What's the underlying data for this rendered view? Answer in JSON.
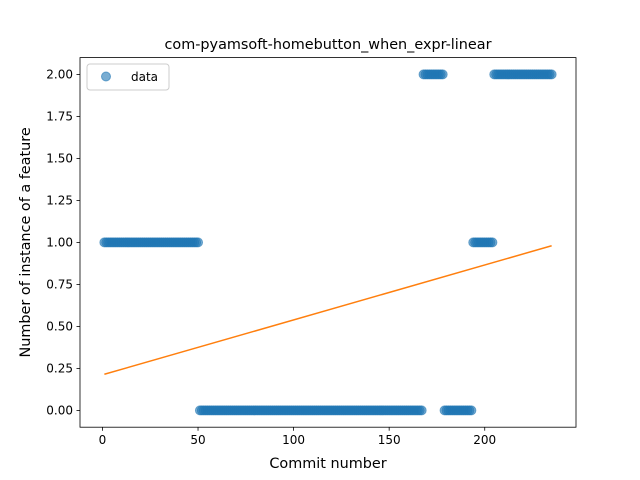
{
  "chart_data": {
    "type": "scatter",
    "title": "com-pyamsoft-homebutton_when_expr-linear",
    "xlabel": "Commit number",
    "ylabel": "Number of instance of a feature",
    "xlim": [
      -11.75,
      247.75
    ],
    "ylim": [
      -0.1,
      2.1
    ],
    "x_ticks": [
      0,
      50,
      100,
      150,
      200
    ],
    "y_ticks": [
      0.0,
      0.25,
      0.5,
      0.75,
      1.0,
      1.25,
      1.5,
      1.75,
      2.0
    ],
    "x_tick_labels": [
      "0",
      "50",
      "100",
      "150",
      "200"
    ],
    "y_tick_labels": [
      "0.00",
      "0.25",
      "0.50",
      "0.75",
      "1.00",
      "1.25",
      "1.50",
      "1.75",
      "2.00"
    ],
    "grid": false,
    "legend_position": "top-left",
    "series": [
      {
        "name": "data",
        "kind": "points",
        "color": "#1f77b4",
        "segments": [
          {
            "x_start": 1,
            "x_end": 50,
            "y": 1
          },
          {
            "x_start": 51,
            "x_end": 167,
            "y": 0
          },
          {
            "x_start": 168,
            "x_end": 178,
            "y": 2
          },
          {
            "x_start": 179,
            "x_end": 193,
            "y": 0
          },
          {
            "x_start": 194,
            "x_end": 204,
            "y": 1
          },
          {
            "x_start": 205,
            "x_end": 235,
            "y": 2
          }
        ]
      },
      {
        "kind": "line",
        "color": "#ff7f0e",
        "x": [
          1,
          235
        ],
        "y": [
          0.215,
          0.98
        ]
      }
    ]
  }
}
